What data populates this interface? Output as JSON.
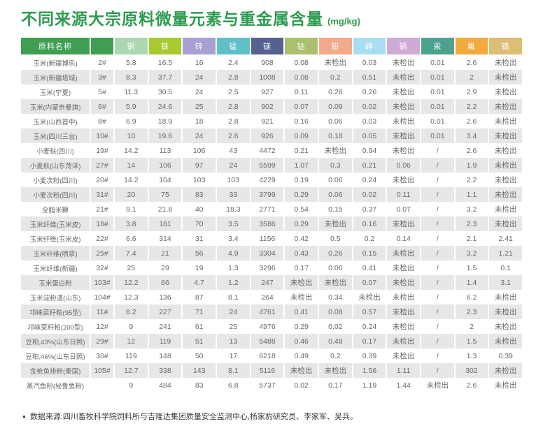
{
  "title": "不同来源大宗原料微量元素与重金属含量",
  "unit": "(mg/kg)",
  "footer": {
    "bullet": "●",
    "text": "数据来源:四川畜牧科学院饲料所与吉隆达集团质量安全监测中心,杨家豹研究员、李家军、吴兵。"
  },
  "colors": {
    "title_green": "#2e9b50",
    "row_shade": "#e7e7e7",
    "cell_text": "#696969"
  },
  "chart_data": {
    "type": "table",
    "title": "不同来源大宗原料微量元素与重金属含量 (mg/kg)",
    "columns": [
      {
        "key": "name",
        "label": "原料名称",
        "color": "#3f9e52"
      },
      {
        "key": "sample-id",
        "label": "",
        "color": "#3f9e52"
      },
      {
        "key": "cu",
        "label": "铜",
        "color": "#abd7b1"
      },
      {
        "key": "fe",
        "label": "铁",
        "color": "#a9c930"
      },
      {
        "key": "zn",
        "label": "锌",
        "color": "#a89fd2"
      },
      {
        "key": "mn",
        "label": "锰",
        "color": "#5fc0c8"
      },
      {
        "key": "mg",
        "label": "镁",
        "color": "#55618e"
      },
      {
        "key": "co",
        "label": "钴",
        "color": "#abc06c"
      },
      {
        "key": "pb",
        "label": "铅",
        "color": "#f2aa8c"
      },
      {
        "key": "as",
        "label": "砷",
        "color": "#a9ddf4"
      },
      {
        "key": "cd",
        "label": "镉",
        "color": "#d0aad7"
      },
      {
        "key": "hg",
        "label": "汞",
        "color": "#4ea28d"
      },
      {
        "key": "f",
        "label": "氟",
        "color": "#f0aa3e"
      },
      {
        "key": "cr",
        "label": "铬",
        "color": "#dcbe74"
      }
    ],
    "rows": [
      {
        "name": "玉米(新疆博乐)",
        "id": "2#",
        "values": [
          "5.8",
          "16.5",
          "16",
          "2.4",
          "908",
          "0.08",
          "未检出",
          "0.03",
          "未检出",
          "0.01",
          "2.6",
          "未检出"
        ]
      },
      {
        "name": "玉米(新疆塔城)",
        "id": "3#",
        "values": [
          "8.3",
          "37.7",
          "24",
          "2.8",
          "1008",
          "0.08",
          "0.2",
          "0.51",
          "未检出",
          "0.01",
          "2",
          "未检出"
        ]
      },
      {
        "name": "玉米(宁夏)",
        "id": "5#",
        "values": [
          "11.3",
          "30.5",
          "24",
          "2.5",
          "927",
          "0.11",
          "0.28",
          "0.26",
          "未检出",
          "0.01",
          "2.9",
          "未检出"
        ]
      },
      {
        "name": "玉米(内蒙奈曼旗)",
        "id": "6#",
        "values": [
          "5.9",
          "24.6",
          "25",
          "2.8",
          "902",
          "0.07",
          "0.09",
          "0.02",
          "未检出",
          "0.01",
          "2.2",
          "未检出"
        ]
      },
      {
        "name": "玉米(山西晋中)",
        "id": "8#",
        "values": [
          "6.9",
          "18.9",
          "18",
          "2.8",
          "921",
          "0.16",
          "0.06",
          "0.03",
          "未检出",
          "0.01",
          "2.6",
          "未检出"
        ]
      },
      {
        "name": "玉米(四川三台)",
        "id": "10#",
        "values": [
          "10",
          "19.6",
          "24",
          "2.6",
          "926",
          "0.09",
          "0.18",
          "0.05",
          "未检出",
          "0.01",
          "3.4",
          "未检出"
        ]
      },
      {
        "name": "小麦麸(四川)",
        "id": "19#",
        "values": [
          "14.2",
          "113",
          "106",
          "43",
          "4472",
          "0.21",
          "未检出",
          "0.94",
          "未检出",
          "/",
          "2.6",
          "未检出"
        ]
      },
      {
        "name": "小麦麸(山东菏泽)",
        "id": "27#",
        "values": [
          "14",
          "106",
          "97",
          "24",
          "5599",
          "1.07",
          "0.3",
          "0.21",
          "0.06",
          "/",
          "1.9",
          "未检出"
        ]
      },
      {
        "name": "小麦次粉(四川)",
        "id": "20#",
        "values": [
          "14.2",
          "104",
          "103",
          "103",
          "4229",
          "0.19",
          "0.06",
          "0.24",
          "未检出",
          "/",
          "2.2",
          "未检出"
        ]
      },
      {
        "name": "小麦次粉(四川)",
        "id": "31#",
        "values": [
          "20",
          "75",
          "83",
          "33",
          "3799",
          "0.29",
          "0.06",
          "0.02",
          "0.11",
          "/",
          "1.1",
          "未检出"
        ]
      },
      {
        "name": "全脂米糠",
        "id": "21#",
        "values": [
          "9.1",
          "21.8",
          "40",
          "18.3",
          "2771",
          "0.54",
          "0.15",
          "0.37",
          "0.07",
          "/",
          "3.2",
          "未检出"
        ]
      },
      {
        "name": "玉米纤维(玉米皮)",
        "id": "18#",
        "values": [
          "3.8",
          "181",
          "70",
          "3.5",
          "3586",
          "0.29",
          "未检出",
          "0.16",
          "未检出",
          "/",
          "2.3",
          "未检出"
        ]
      },
      {
        "name": "玉米纤维(玉米皮)",
        "id": "22#",
        "values": [
          "6.6",
          "314",
          "31",
          "3.4",
          "1156",
          "0.42",
          "0.5",
          "0.2",
          "0.14",
          "/",
          "2.1",
          "2.41"
        ]
      },
      {
        "name": "玉米纤维(喷浆)",
        "id": "25#",
        "values": [
          "7.4",
          "21",
          "56",
          "4.9",
          "3304",
          "0.43",
          "0.26",
          "0.15",
          "未检出",
          "/",
          "3.2",
          "1.21"
        ]
      },
      {
        "name": "玉米纤维(新疆)",
        "id": "32#",
        "values": [
          "25",
          "29",
          "19",
          "1.3",
          "3296",
          "0.17",
          "0.06",
          "0.41",
          "未检出",
          "/",
          "1.5",
          "0.1"
        ]
      },
      {
        "name": "玉米蛋白粉",
        "id": "103#",
        "values": [
          "12.2",
          "66",
          "4.7",
          "1.2",
          "247",
          "未检出",
          "未检出",
          "0.07",
          "未检出",
          "/",
          "1.4",
          "3.1"
        ]
      },
      {
        "name": "玉米淀粉渣(山东)",
        "id": "104#",
        "values": [
          "12.3",
          "136",
          "87",
          "8.1",
          "264",
          "未检出",
          "0.34",
          "未检出",
          "未检出",
          "/",
          "6.2",
          "未检出"
        ]
      },
      {
        "name": "邛崃菜籽粕(95型)",
        "id": "11#",
        "values": [
          "8.2",
          "227",
          "71",
          "24",
          "4761",
          "0.41",
          "0.08",
          "0.57",
          "未检出",
          "/",
          "2.3",
          "未检出"
        ]
      },
      {
        "name": "邛崃菜籽粕(200型)",
        "id": "12#",
        "values": [
          "9",
          "241",
          "61",
          "25",
          "4976",
          "0.29",
          "0.02",
          "0.24",
          "未检出",
          "/",
          "2",
          "未检出"
        ]
      },
      {
        "name": "豆粕,43%(山东日照)",
        "id": "29#",
        "values": [
          "12",
          "119",
          "51",
          "13",
          "5488",
          "0.46",
          "0.48",
          "0.17",
          "未检出",
          "/",
          "1.5",
          "未检出"
        ]
      },
      {
        "name": "豆粕,46%(山东日照)",
        "id": "30#",
        "values": [
          "119",
          "148",
          "50",
          "17",
          "6218",
          "0.49",
          "0.2",
          "0.39",
          "未检出",
          "/",
          "1.3",
          "0.39"
        ]
      },
      {
        "name": "金枪鱼排粉(泰国)",
        "id": "105#",
        "values": [
          "12.7",
          "338",
          "143",
          "8.1",
          "5116",
          "未检出",
          "未检出",
          "1.56",
          "1.11",
          "/",
          "302",
          "未检出"
        ]
      },
      {
        "name": "蒸汽鱼粉(秘鲁鱼粉)",
        "id": "",
        "values": [
          "9",
          "484",
          "83",
          "6.8",
          "5737",
          "0.02",
          "0.17",
          "1.19",
          "1.44",
          "未检出",
          "2.6",
          "未检出"
        ]
      }
    ]
  }
}
